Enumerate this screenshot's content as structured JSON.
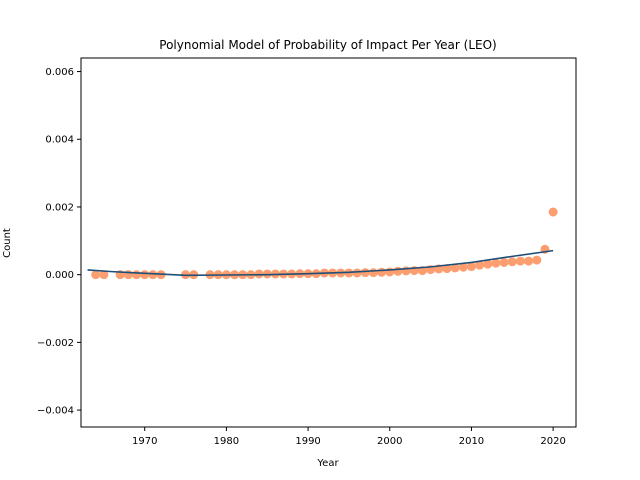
{
  "chart_data": {
    "type": "scatter",
    "title": "Polynomial Model of Probability of Impact Per Year (LEO)",
    "xlabel": "Year",
    "ylabel": "Count",
    "xlim": [
      1962.2,
      2022.8
    ],
    "ylim": [
      -0.0045,
      0.0064
    ],
    "xticks": [
      1970,
      1980,
      1990,
      2000,
      2010,
      2020
    ],
    "xtick_labels": [
      "1970",
      "1980",
      "1990",
      "2000",
      "2010",
      "2020"
    ],
    "yticks": [
      -0.004,
      -0.002,
      0.0,
      0.002,
      0.004,
      0.006
    ],
    "ytick_labels": [
      "−0.004",
      "−0.002",
      "0.000",
      "0.002",
      "0.004",
      "0.006"
    ],
    "grid": false,
    "legend": null,
    "colors": {
      "points": "#fc9e6f",
      "fit_line": "#1f4e79"
    },
    "series": [
      {
        "type": "scatter",
        "x": [
          1964,
          1965,
          1967,
          1968,
          1969,
          1970,
          1971,
          1972,
          1975,
          1976,
          1978,
          1979,
          1980,
          1981,
          1982,
          1983,
          1984,
          1985,
          1986,
          1987,
          1988,
          1989,
          1990,
          1991,
          1992,
          1993,
          1994,
          1995,
          1996,
          1997,
          1998,
          1999,
          2000,
          2001,
          2002,
          2003,
          2004,
          2005,
          2006,
          2007,
          2008,
          2009,
          2010,
          2011,
          2012,
          2013,
          2014,
          2015,
          2016,
          2017,
          2018,
          2019,
          2020
        ],
        "y": [
          0.0,
          0.0,
          0.0,
          0.0,
          0.0,
          0.0,
          0.0,
          0.0,
          0.0,
          0.0,
          0.0,
          0.0,
          0.0,
          0.0,
          0.0,
          0.0,
          2e-05,
          2e-05,
          2e-05,
          2e-05,
          2e-05,
          3e-05,
          3e-05,
          3e-05,
          5e-05,
          5e-05,
          5e-05,
          5e-05,
          5e-05,
          6e-05,
          6e-05,
          7e-05,
          8e-05,
          0.0001,
          0.00011,
          0.00012,
          0.00012,
          0.00015,
          0.00017,
          0.00018,
          0.0002,
          0.00022,
          0.00024,
          0.00028,
          0.00031,
          0.00034,
          0.00036,
          0.00038,
          0.0004,
          0.0004,
          0.00043,
          0.00075,
          0.00185
        ]
      },
      {
        "type": "line",
        "x": [
          1963,
          1966,
          1970,
          1975,
          1980,
          1985,
          1990,
          1995,
          2000,
          2005,
          2010,
          2015,
          2020
        ],
        "y": [
          0.00014,
          9e-05,
          4e-05,
          -2e-05,
          -1e-05,
          0.0,
          3e-05,
          7e-05,
          0.00014,
          0.00023,
          0.00036,
          0.00054,
          0.00071
        ]
      }
    ]
  }
}
